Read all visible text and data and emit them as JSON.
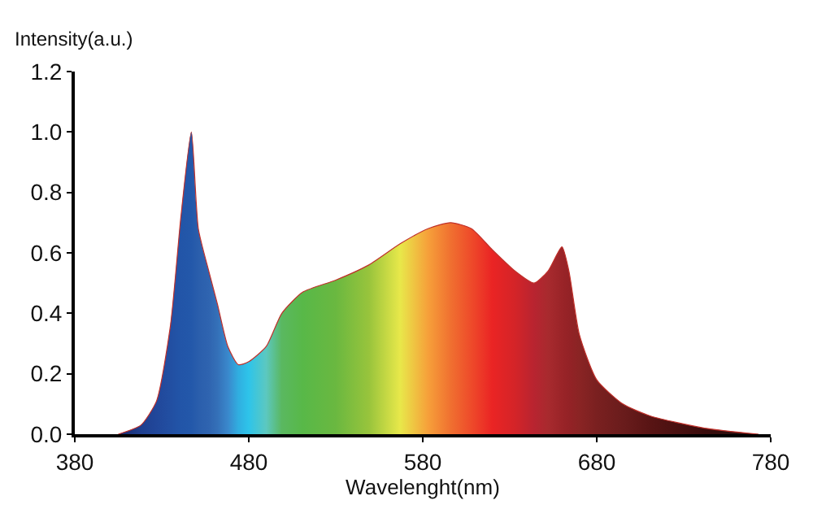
{
  "chart_data": {
    "type": "area",
    "xlabel": "Wavelenght(nm)",
    "ylabel": "Intensity(a.u.)",
    "xlim": [
      380,
      780
    ],
    "xticks": [
      380,
      480,
      580,
      680,
      780
    ],
    "ylim": [
      0,
      1.2
    ],
    "yticks": [
      {
        "value": 0,
        "label": "0.0"
      },
      {
        "value": 0.2,
        "label": "0.2"
      },
      {
        "value": 0.4,
        "label": "0.4"
      },
      {
        "value": 0.6,
        "label": "0.6"
      },
      {
        "value": 0.8,
        "label": "0.8"
      },
      {
        "value": 1,
        "label": "1.0"
      },
      {
        "value": 1.2,
        "label": "1.2"
      }
    ],
    "grid": false,
    "x": [
      405,
      418,
      427,
      435,
      441,
      447,
      451,
      457,
      462,
      468,
      474,
      480,
      490,
      499,
      511,
      530,
      549,
      567,
      583,
      596,
      608,
      620,
      633,
      644,
      652,
      660,
      664,
      670,
      680,
      695,
      711,
      742,
      773
    ],
    "series": [
      {
        "color": "#c0302a",
        "values": [
          0,
          0.03,
          0.11,
          0.36,
          0.72,
          1.0,
          0.68,
          0.54,
          0.43,
          0.29,
          0.23,
          0.24,
          0.29,
          0.4,
          0.47,
          0.51,
          0.56,
          0.63,
          0.68,
          0.7,
          0.68,
          0.61,
          0.54,
          0.5,
          0.54,
          0.62,
          0.54,
          0.33,
          0.18,
          0.1,
          0.06,
          0.02,
          0
        ],
        "colors": [
          "#1a2a6c",
          "#1f3f8f",
          "#21479a",
          "#224fa2",
          "#2255a8",
          "#2358aa",
          "#2a5eac",
          "#2f64b0",
          "#3470b8",
          "#3a88cc",
          "#30aee0",
          "#2ec4ea",
          "#5cc8c0",
          "#5ab860",
          "#58b848",
          "#6ab840",
          "#98c43c",
          "#e8e84a",
          "#f6a03a",
          "#f07030",
          "#ee4a2a",
          "#ea2424",
          "#d42428",
          "#b82430",
          "#a82a2e",
          "#9a2428",
          "#942226",
          "#8a2424",
          "#7a2020",
          "#6a1c1c",
          "#581414",
          "#3a0c0c",
          "#201010"
        ]
      }
    ]
  }
}
